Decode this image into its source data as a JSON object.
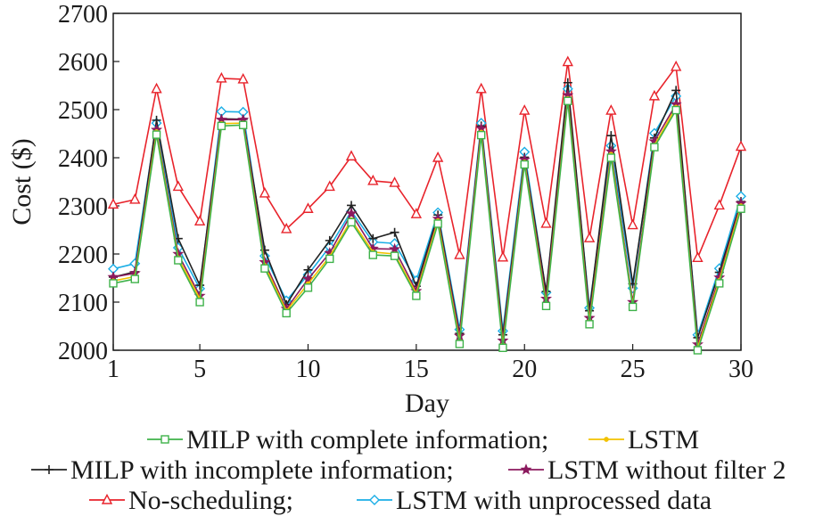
{
  "chart_data": {
    "type": "line",
    "title": "",
    "xlabel": "Day",
    "ylabel": "Cost ($)",
    "xlim": [
      1,
      30
    ],
    "ylim": [
      2000,
      2700
    ],
    "xticks": [
      1,
      5,
      10,
      15,
      20,
      25,
      30
    ],
    "yticks": [
      2000,
      2100,
      2200,
      2300,
      2400,
      2500,
      2600,
      2700
    ],
    "legend_position": "bottom",
    "x": [
      1,
      2,
      3,
      4,
      5,
      6,
      7,
      8,
      9,
      10,
      11,
      12,
      13,
      14,
      15,
      16,
      17,
      18,
      19,
      20,
      21,
      22,
      23,
      24,
      25,
      26,
      27,
      28,
      29,
      30
    ],
    "series": [
      {
        "name": "No-scheduling;",
        "color": "#e8232b",
        "marker": "triangle",
        "values": [
          2303,
          2313,
          2543,
          2340,
          2268,
          2565,
          2563,
          2326,
          2252,
          2294,
          2340,
          2403,
          2352,
          2348,
          2283,
          2400,
          2198,
          2543,
          2193,
          2498,
          2263,
          2599,
          2233,
          2498,
          2260,
          2528,
          2589,
          2192,
          2301,
          2423
        ]
      },
      {
        "name": "LSTM with unprocessed data",
        "color": "#1aaee6",
        "marker": "diamond",
        "values": [
          2169,
          2180,
          2472,
          2213,
          2128,
          2496,
          2495,
          2196,
          2103,
          2157,
          2215,
          2289,
          2225,
          2222,
          2145,
          2286,
          2043,
          2472,
          2040,
          2412,
          2120,
          2543,
          2088,
          2425,
          2129,
          2451,
          2528,
          2032,
          2170,
          2320
        ]
      },
      {
        "name": "MILP with incomplete information;",
        "color": "#222222",
        "marker": "plus",
        "values": [
          2152,
          2163,
          2478,
          2232,
          2135,
          2481,
          2480,
          2208,
          2095,
          2167,
          2228,
          2301,
          2232,
          2245,
          2133,
          2281,
          2035,
          2466,
          2032,
          2401,
          2122,
          2556,
          2082,
          2446,
          2138,
          2441,
          2540,
          2026,
          2162,
          2309
        ]
      },
      {
        "name": "LSTM without filter 2",
        "color": "#8b1a5e",
        "marker": "star",
        "values": [
          2152,
          2160,
          2458,
          2200,
          2113,
          2479,
          2479,
          2183,
          2086,
          2148,
          2202,
          2284,
          2211,
          2210,
          2123,
          2273,
          2030,
          2461,
          2020,
          2396,
          2107,
          2530,
          2067,
          2413,
          2100,
          2434,
          2511,
          2012,
          2151,
          2305
        ]
      },
      {
        "name": "LSTM",
        "color": "#f2c200",
        "marker": "dot",
        "values": [
          2144,
          2153,
          2454,
          2192,
          2107,
          2471,
          2472,
          2176,
          2082,
          2138,
          2195,
          2271,
          2204,
          2200,
          2118,
          2269,
          2019,
          2453,
          2011,
          2391,
          2097,
          2523,
          2060,
          2407,
          2094,
          2426,
          2505,
          2005,
          2145,
          2300
        ]
      },
      {
        "name": "MILP with complete information;",
        "color": "#3fb24a",
        "marker": "square",
        "values": [
          2139,
          2148,
          2448,
          2187,
          2100,
          2466,
          2468,
          2170,
          2077,
          2130,
          2190,
          2266,
          2198,
          2196,
          2113,
          2263,
          2013,
          2447,
          2005,
          2386,
          2092,
          2518,
          2054,
          2400,
          2090,
          2422,
          2499,
          2000,
          2139,
          2294
        ]
      }
    ],
    "legend": [
      [
        "MILP with complete information;",
        "LSTM"
      ],
      [
        "MILP with incomplete information;",
        "LSTM without filter 2"
      ],
      [
        "No-scheduling;",
        "LSTM with unprocessed data"
      ]
    ]
  }
}
